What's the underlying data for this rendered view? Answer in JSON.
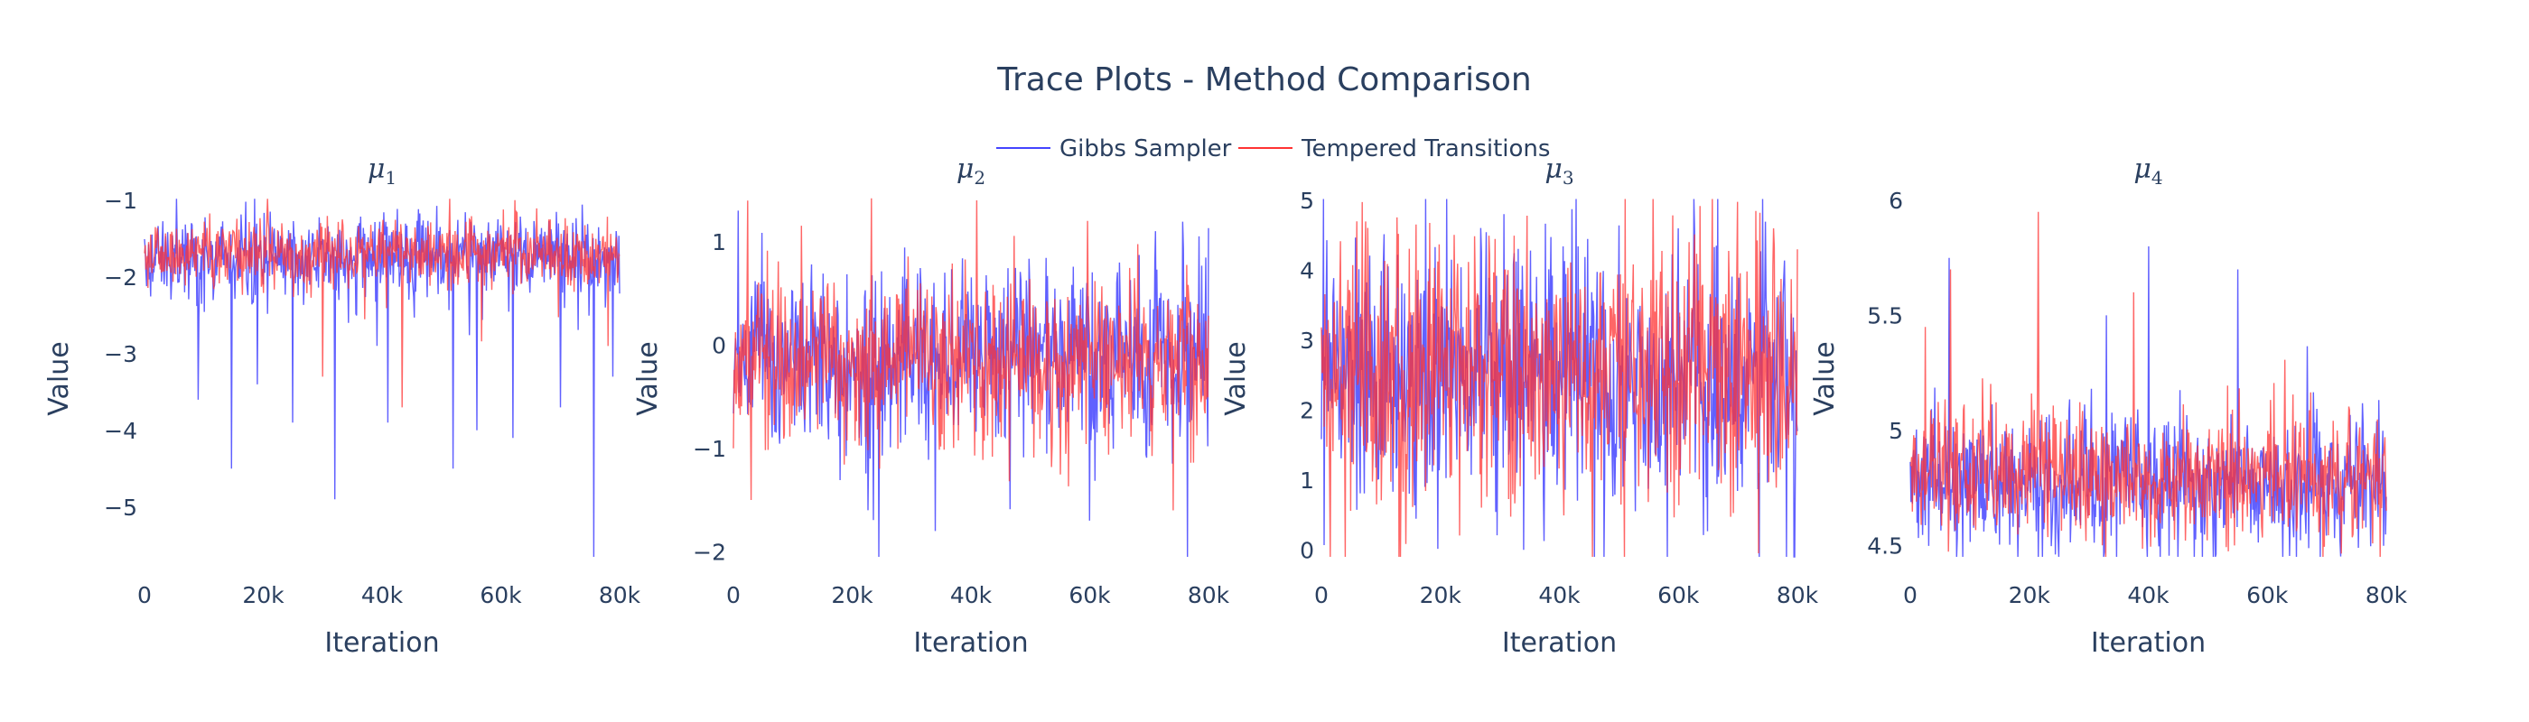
{
  "chart_data": {
    "type": "line",
    "title": "Trace Plots - Method Comparison",
    "legend": {
      "placement": "top-center",
      "entries": [
        {
          "name": "Gibbs Sampler",
          "color": "#4444ff"
        },
        {
          "name": "Tempered Transitions",
          "color": "#ff3333"
        }
      ]
    },
    "xlabel": "Iteration",
    "ylabel": "Value",
    "grid": false,
    "subplots": [
      {
        "title_base": "μ",
        "title_sub": "1",
        "xlim": [
          0,
          80000
        ],
        "ylim": [
          -5.65,
          -1.0
        ],
        "xticks": [
          0,
          20000,
          40000,
          60000,
          80000
        ],
        "xtick_labels": [
          "0",
          "20k",
          "40k",
          "60k",
          "80k"
        ],
        "yticks": [
          -1,
          -2,
          -3,
          -4,
          -5
        ],
        "ytick_labels": [
          "−1",
          "−2",
          "−3",
          "−4",
          "−5"
        ],
        "series": [
          {
            "name": "Gibbs Sampler",
            "center": -1.75,
            "sd": 0.28,
            "outliers": [
              [
                9000,
                -3.6
              ],
              [
                14700,
                -4.5
              ],
              [
                19000,
                -3.4
              ],
              [
                25000,
                -3.9
              ],
              [
                32000,
                -4.9
              ],
              [
                41000,
                -3.9
              ],
              [
                52000,
                -4.5
              ],
              [
                56000,
                -4.0
              ],
              [
                62000,
                -4.1
              ],
              [
                70000,
                -3.7
              ],
              [
                75700,
                -5.65
              ],
              [
                78800,
                -3.3
              ]
            ]
          },
          {
            "name": "Tempered Transitions",
            "center": -1.7,
            "sd": 0.22,
            "outliers": [
              [
                43400,
                -3.7
              ],
              [
                30000,
                -3.3
              ],
              [
                78000,
                -2.9
              ]
            ]
          }
        ]
      },
      {
        "title_base": "μ",
        "title_sub": "2",
        "xlim": [
          0,
          80000
        ],
        "ylim": [
          -2.05,
          1.4
        ],
        "xticks": [
          0,
          20000,
          40000,
          60000,
          80000
        ],
        "xtick_labels": [
          "0",
          "20k",
          "40k",
          "60k",
          "80k"
        ],
        "yticks": [
          1,
          0,
          -1,
          -2
        ],
        "ytick_labels": [
          "1",
          "0",
          "−1",
          "−2"
        ],
        "series": [
          {
            "name": "Gibbs Sampler",
            "center": -0.1,
            "sd": 0.45,
            "outliers": [
              [
                800,
                1.3
              ],
              [
                76500,
                -2.05
              ],
              [
                60000,
                -1.7
              ],
              [
                34000,
                -1.8
              ]
            ]
          },
          {
            "name": "Tempered Transitions",
            "center": -0.15,
            "sd": 0.4,
            "outliers": [
              [
                41000,
                1.4
              ],
              [
                3000,
                -1.5
              ],
              [
                74000,
                -1.6
              ]
            ]
          }
        ]
      },
      {
        "title_base": "μ",
        "title_sub": "3",
        "xlim": [
          0,
          80000
        ],
        "ylim": [
          -0.1,
          5.0
        ],
        "xticks": [
          0,
          20000,
          40000,
          60000,
          80000
        ],
        "xtick_labels": [
          "0",
          "20k",
          "40k",
          "60k",
          "80k"
        ],
        "yticks": [
          5,
          4,
          3,
          2,
          1,
          0
        ],
        "ytick_labels": [
          "5",
          "4",
          "3",
          "2",
          "1",
          "0"
        ],
        "series": [
          {
            "name": "Gibbs Sampler",
            "center": 2.4,
            "sd": 0.95,
            "outliers": [
              [
                60000,
                4.6
              ],
              [
                34000,
                0.0
              ]
            ]
          },
          {
            "name": "Tempered Transitions",
            "center": 2.6,
            "sd": 0.95,
            "outliers": [
              [
                1500,
                -0.1
              ],
              [
                6000,
                4.7
              ],
              [
                73500,
                -0.05
              ],
              [
                76000,
                4.6
              ]
            ]
          }
        ]
      },
      {
        "title_base": "μ",
        "title_sub": "4",
        "xlim": [
          0,
          80000
        ],
        "ylim": [
          4.45,
          6.0
        ],
        "xticks": [
          0,
          20000,
          40000,
          60000,
          80000
        ],
        "xtick_labels": [
          "0",
          "20k",
          "40k",
          "60k",
          "80k"
        ],
        "yticks": [
          6,
          5.5,
          5,
          4.5
        ],
        "ytick_labels": [
          "6",
          "5.5",
          "5",
          "4.5"
        ],
        "series": [
          {
            "name": "Gibbs Sampler",
            "center": 4.78,
            "sd": 0.15,
            "outliers": [
              [
                6500,
                5.75
              ],
              [
                40000,
                5.8
              ],
              [
                55000,
                5.7
              ],
              [
                33000,
                5.5
              ]
            ]
          },
          {
            "name": "Tempered Transitions",
            "center": 4.8,
            "sd": 0.13,
            "outliers": [
              [
                21500,
                5.95
              ],
              [
                6800,
                5.7
              ],
              [
                2500,
                5.45
              ],
              [
                37500,
                5.6
              ]
            ]
          }
        ]
      }
    ]
  }
}
